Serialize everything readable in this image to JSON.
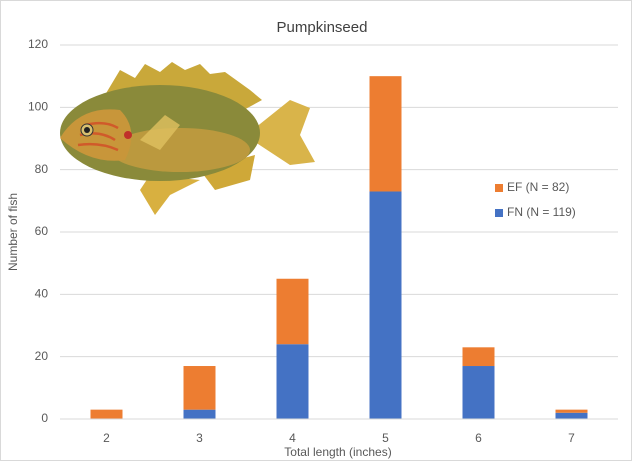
{
  "chart_data": {
    "type": "stacked-bar",
    "title": "Pumpkinseed",
    "x_label": "Total length (inches)",
    "y_label": "Number of fish",
    "categories": [
      "2",
      "3",
      "4",
      "5",
      "6",
      "7"
    ],
    "series": [
      {
        "name": "FN (N = 119)",
        "color": "#4472c4",
        "values": [
          0,
          3,
          24,
          73,
          17,
          2
        ]
      },
      {
        "name": "EF (N = 82)",
        "color": "#ed7d31",
        "values": [
          3,
          14,
          21,
          37,
          6,
          1
        ]
      }
    ],
    "ylim": [
      0,
      120
    ],
    "yticks": [
      0,
      20,
      40,
      60,
      80,
      100,
      120
    ],
    "grid": true,
    "legend": "right"
  }
}
